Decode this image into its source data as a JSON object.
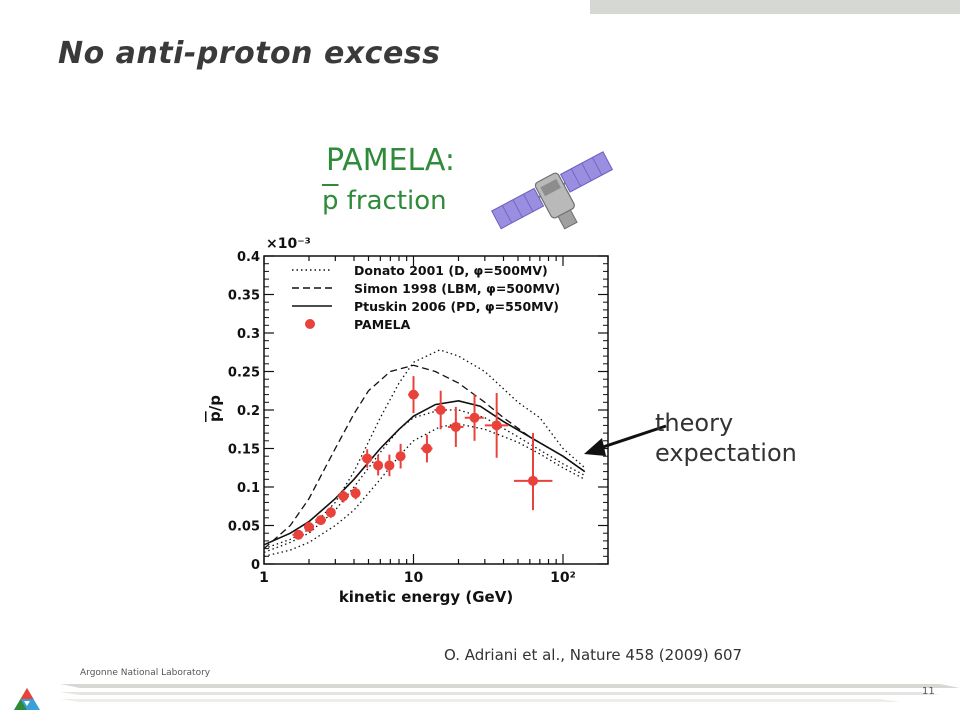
{
  "slide": {
    "title": "No anti-proton excess",
    "figure_title": "PAMELA:",
    "figure_subtitle_pbar": "p",
    "figure_subtitle_rest": " fraction",
    "annotation_line1": "theory",
    "annotation_line2": "expectation",
    "citation": "O. Adriani et al., Nature 458 (2009) 607",
    "lab_name": "Argonne National Laboratory",
    "page_number": "11",
    "colors": {
      "accent_green": "#2e8b3a",
      "data_red": "#e8423a",
      "footer_gray": "#d6d8d4"
    },
    "icons": [
      "satellite-icon",
      "argonne-logo-icon",
      "arrow-icon"
    ]
  },
  "chart_data": {
    "type": "scatter",
    "x_scale": "log",
    "xlim": [
      1,
      200
    ],
    "ylim": [
      0,
      0.4
    ],
    "y_exponent_label": "×10⁻³",
    "xlabel": "kinetic energy (GeV)",
    "ylabel_pbar": "p",
    "ylabel_rest": "/p",
    "x_ticks": [
      {
        "v": 1,
        "label": "1"
      },
      {
        "v": 10,
        "label": "10"
      },
      {
        "v": 100,
        "label": "10²"
      }
    ],
    "y_ticks": [
      {
        "v": 0,
        "label": "0"
      },
      {
        "v": 0.05,
        "label": "0.05"
      },
      {
        "v": 0.1,
        "label": "0.1"
      },
      {
        "v": 0.15,
        "label": "0.15"
      },
      {
        "v": 0.2,
        "label": "0.2"
      },
      {
        "v": 0.25,
        "label": "0.25"
      },
      {
        "v": 0.3,
        "label": "0.3"
      },
      {
        "v": 0.35,
        "label": "0.35"
      },
      {
        "v": 0.4,
        "label": "0.4"
      }
    ],
    "legend": [
      {
        "label": "Donato 2001 (D, φ=500MV)",
        "style": "dotted"
      },
      {
        "label": "Simon 1998 (LBM, φ=500MV)",
        "style": "dashed"
      },
      {
        "label": "Ptuskin 2006 (PD, φ=550MV)",
        "style": "solid"
      },
      {
        "label": "PAMELA",
        "style": "marker"
      }
    ],
    "series": [
      {
        "name": "PAMELA",
        "style": "marker",
        "points": [
          {
            "x": 1.7,
            "y": 0.038,
            "xlo": 1.55,
            "xhi": 1.85,
            "ylo": 0.033,
            "yhi": 0.043
          },
          {
            "x": 2.0,
            "y": 0.048,
            "xlo": 1.85,
            "xhi": 2.15,
            "ylo": 0.042,
            "yhi": 0.054
          },
          {
            "x": 2.4,
            "y": 0.057,
            "xlo": 2.2,
            "xhi": 2.6,
            "ylo": 0.051,
            "yhi": 0.063
          },
          {
            "x": 2.8,
            "y": 0.067,
            "xlo": 2.6,
            "xhi": 3.0,
            "ylo": 0.06,
            "yhi": 0.074
          },
          {
            "x": 3.4,
            "y": 0.088,
            "xlo": 3.1,
            "xhi": 3.7,
            "ylo": 0.08,
            "yhi": 0.096
          },
          {
            "x": 4.1,
            "y": 0.092,
            "xlo": 3.8,
            "xhi": 4.4,
            "ylo": 0.084,
            "yhi": 0.1
          },
          {
            "x": 4.9,
            "y": 0.137,
            "xlo": 4.5,
            "xhi": 5.3,
            "ylo": 0.125,
            "yhi": 0.149
          },
          {
            "x": 5.8,
            "y": 0.128,
            "xlo": 5.4,
            "xhi": 6.2,
            "ylo": 0.115,
            "yhi": 0.141
          },
          {
            "x": 6.9,
            "y": 0.128,
            "xlo": 6.4,
            "xhi": 7.4,
            "ylo": 0.114,
            "yhi": 0.142
          },
          {
            "x": 8.2,
            "y": 0.14,
            "xlo": 7.6,
            "xhi": 8.8,
            "ylo": 0.124,
            "yhi": 0.156
          },
          {
            "x": 10.0,
            "y": 0.22,
            "xlo": 9.2,
            "xhi": 10.9,
            "ylo": 0.196,
            "yhi": 0.244
          },
          {
            "x": 12.3,
            "y": 0.15,
            "xlo": 11.2,
            "xhi": 13.4,
            "ylo": 0.132,
            "yhi": 0.168
          },
          {
            "x": 15.2,
            "y": 0.2,
            "xlo": 13.8,
            "xhi": 16.7,
            "ylo": 0.175,
            "yhi": 0.225
          },
          {
            "x": 19.2,
            "y": 0.178,
            "xlo": 17.0,
            "xhi": 21.6,
            "ylo": 0.152,
            "yhi": 0.204
          },
          {
            "x": 25.6,
            "y": 0.19,
            "xlo": 22.0,
            "xhi": 29.5,
            "ylo": 0.16,
            "yhi": 0.22
          },
          {
            "x": 36.0,
            "y": 0.18,
            "xlo": 30.0,
            "xhi": 43.0,
            "ylo": 0.138,
            "yhi": 0.222
          },
          {
            "x": 63.0,
            "y": 0.108,
            "xlo": 47.0,
            "xhi": 85.0,
            "ylo": 0.07,
            "yhi": 0.17
          }
        ]
      },
      {
        "name": "Ptuskin 2006 (PD, φ=550MV)",
        "style": "solid",
        "points": [
          {
            "x": 1,
            "y": 0.025
          },
          {
            "x": 1.5,
            "y": 0.04
          },
          {
            "x": 2,
            "y": 0.055
          },
          {
            "x": 3,
            "y": 0.085
          },
          {
            "x": 4,
            "y": 0.11
          },
          {
            "x": 6,
            "y": 0.15
          },
          {
            "x": 8,
            "y": 0.175
          },
          {
            "x": 10,
            "y": 0.192
          },
          {
            "x": 14,
            "y": 0.207
          },
          {
            "x": 20,
            "y": 0.212
          },
          {
            "x": 28,
            "y": 0.205
          },
          {
            "x": 40,
            "y": 0.185
          },
          {
            "x": 60,
            "y": 0.165
          },
          {
            "x": 100,
            "y": 0.14
          },
          {
            "x": 140,
            "y": 0.12
          }
        ]
      },
      {
        "name": "Simon 1998 (LBM, φ=500MV)",
        "style": "dashed",
        "points": [
          {
            "x": 1,
            "y": 0.02
          },
          {
            "x": 1.5,
            "y": 0.05
          },
          {
            "x": 2,
            "y": 0.085
          },
          {
            "x": 3,
            "y": 0.15
          },
          {
            "x": 4,
            "y": 0.195
          },
          {
            "x": 5,
            "y": 0.225
          },
          {
            "x": 7,
            "y": 0.25
          },
          {
            "x": 10,
            "y": 0.258
          },
          {
            "x": 14,
            "y": 0.25
          },
          {
            "x": 20,
            "y": 0.235
          },
          {
            "x": 30,
            "y": 0.21
          },
          {
            "x": 40,
            "y": 0.19
          },
          {
            "x": 60,
            "y": 0.165
          },
          {
            "x": 100,
            "y": 0.14
          },
          {
            "x": 140,
            "y": 0.12
          }
        ]
      },
      {
        "name": "Donato 2001 (D, φ=500MV) upper",
        "style": "dotted",
        "points": [
          {
            "x": 1,
            "y": 0.02
          },
          {
            "x": 1.5,
            "y": 0.032
          },
          {
            "x": 2,
            "y": 0.045
          },
          {
            "x": 3,
            "y": 0.08
          },
          {
            "x": 4,
            "y": 0.12
          },
          {
            "x": 6,
            "y": 0.19
          },
          {
            "x": 8,
            "y": 0.235
          },
          {
            "x": 10,
            "y": 0.262
          },
          {
            "x": 15,
            "y": 0.278
          },
          {
            "x": 20,
            "y": 0.27
          },
          {
            "x": 30,
            "y": 0.25
          },
          {
            "x": 50,
            "y": 0.21
          },
          {
            "x": 70,
            "y": 0.19
          },
          {
            "x": 100,
            "y": 0.15
          },
          {
            "x": 140,
            "y": 0.125
          }
        ]
      },
      {
        "name": "Donato 2001 (D, φ=500MV) middle",
        "style": "dotted",
        "points": [
          {
            "x": 1,
            "y": 0.015
          },
          {
            "x": 1.5,
            "y": 0.028
          },
          {
            "x": 2,
            "y": 0.04
          },
          {
            "x": 3,
            "y": 0.07
          },
          {
            "x": 4,
            "y": 0.1
          },
          {
            "x": 6,
            "y": 0.145
          },
          {
            "x": 8,
            "y": 0.175
          },
          {
            "x": 10,
            "y": 0.19
          },
          {
            "x": 15,
            "y": 0.2
          },
          {
            "x": 20,
            "y": 0.2
          },
          {
            "x": 30,
            "y": 0.19
          },
          {
            "x": 50,
            "y": 0.165
          },
          {
            "x": 70,
            "y": 0.148
          },
          {
            "x": 100,
            "y": 0.13
          },
          {
            "x": 140,
            "y": 0.115
          }
        ]
      },
      {
        "name": "Donato 2001 (D, φ=500MV) lower",
        "style": "dotted",
        "points": [
          {
            "x": 1,
            "y": 0.01
          },
          {
            "x": 1.5,
            "y": 0.018
          },
          {
            "x": 2,
            "y": 0.028
          },
          {
            "x": 3,
            "y": 0.05
          },
          {
            "x": 4,
            "y": 0.07
          },
          {
            "x": 6,
            "y": 0.11
          },
          {
            "x": 8,
            "y": 0.14
          },
          {
            "x": 10,
            "y": 0.16
          },
          {
            "x": 15,
            "y": 0.178
          },
          {
            "x": 20,
            "y": 0.182
          },
          {
            "x": 30,
            "y": 0.175
          },
          {
            "x": 50,
            "y": 0.158
          },
          {
            "x": 70,
            "y": 0.143
          },
          {
            "x": 100,
            "y": 0.125
          },
          {
            "x": 140,
            "y": 0.11
          }
        ]
      }
    ],
    "grid": false,
    "legend_position": "top-left"
  }
}
